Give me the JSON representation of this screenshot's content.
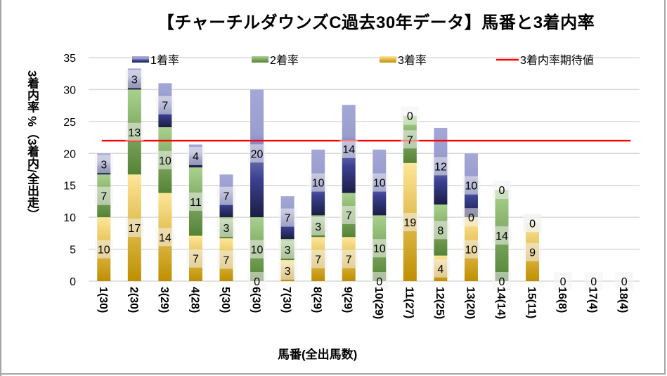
{
  "chart_data": {
    "type": "bar",
    "stacked": true,
    "title": "【チャーチルダウンズC過去30年データ】馬番と3着内率",
    "xlabel": "馬番(全出馬数)",
    "ylabel": "3着内率 %（3着内/全出走）",
    "ylim": [
      0,
      35
    ],
    "yticks": [
      0,
      5,
      10,
      15,
      20,
      25,
      30,
      35
    ],
    "grid": true,
    "legend_position": "top",
    "categories": [
      "1(30)",
      "2(30)",
      "3(29)",
      "4(28)",
      "5(30)",
      "6(30)",
      "7(30)",
      "8(29)",
      "9(29)",
      "10(29)",
      "11(27)",
      "12(25)",
      "13(20)",
      "14(14)",
      "15(11)",
      "16(8)",
      "17(4)",
      "18(4)"
    ],
    "series": [
      {
        "name": "3着率",
        "color": "#d4a017",
        "values": [
          10.0,
          16.7,
          13.8,
          7.1,
          6.7,
          0,
          3.3,
          6.9,
          6.9,
          0,
          18.5,
          4.0,
          10.0,
          0,
          9.1,
          0,
          0,
          0
        ],
        "labels": [
          10,
          17,
          14,
          7,
          7,
          0,
          3,
          7,
          7,
          0,
          19,
          4,
          10,
          0,
          9,
          null,
          null,
          null
        ]
      },
      {
        "name": "2着率",
        "color": "#70a050",
        "values": [
          6.7,
          13.3,
          10.3,
          10.7,
          3.3,
          10.0,
          3.3,
          3.4,
          6.9,
          10.3,
          7.4,
          8.0,
          0,
          14.3,
          0,
          0,
          0,
          0
        ],
        "labels": [
          7,
          13,
          10,
          11,
          3,
          10,
          3,
          3,
          7,
          10,
          7,
          8,
          0,
          14,
          0,
          null,
          null,
          null
        ]
      },
      {
        "name": "1着率",
        "color": "#3a3f8f",
        "values": [
          3.3,
          3.3,
          6.9,
          3.6,
          6.7,
          20.0,
          6.7,
          10.3,
          13.8,
          10.3,
          0,
          12.0,
          10.0,
          0,
          0,
          0,
          0,
          0
        ],
        "labels": [
          3,
          3,
          7,
          4,
          7,
          20,
          7,
          10,
          14,
          10,
          0,
          12,
          10,
          0,
          0,
          0,
          0,
          0
        ]
      }
    ],
    "reference_line": {
      "name": "3着内率期待値",
      "value": 22.0,
      "color": "#ff0000"
    },
    "legend": [
      "1着率",
      "2着率",
      "3着率",
      "3着内率期待値"
    ]
  }
}
